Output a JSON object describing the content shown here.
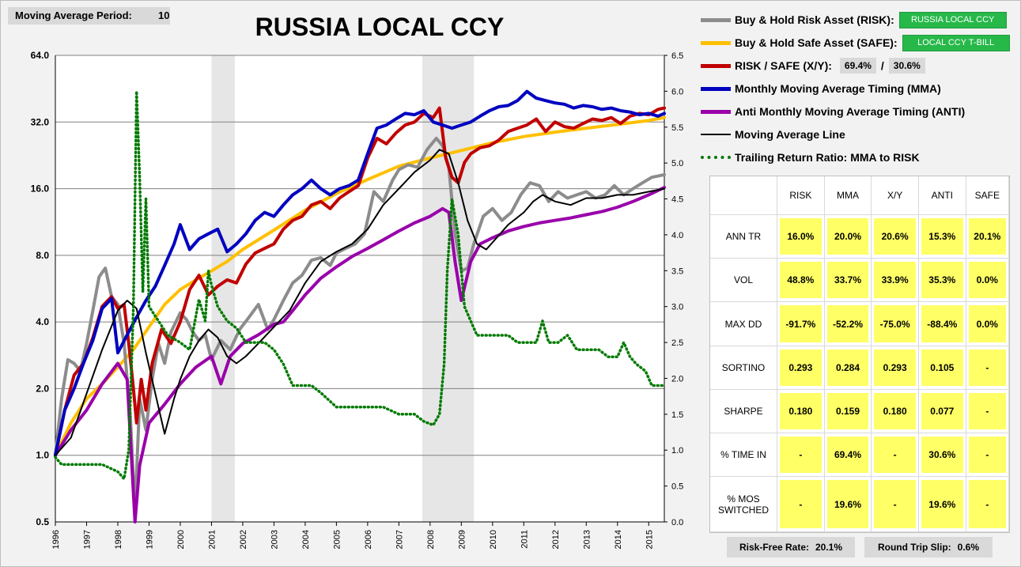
{
  "header": {
    "ma_period_label": "Moving Average Period:",
    "ma_period_value": "10"
  },
  "legend": {
    "risk_label": "Buy & Hold Risk Asset (RISK):",
    "risk_asset": "RUSSIA LOCAL CCY",
    "safe_label": "Buy & Hold Safe Asset (SAFE):",
    "safe_asset": "LOCAL CCY T-BILL",
    "xy_label": "RISK / SAFE (X/Y):",
    "xy_risk_pct": "69.4%",
    "xy_sep": "/",
    "xy_safe_pct": "30.6%",
    "mma_label": "Monthly Moving Average Timing (MMA)",
    "anti_label": "Anti Monthly Moving Average Timing (ANTI)",
    "maline_label": "Moving Average Line",
    "trr_label": "Trailing Return Ratio: MMA to RISK"
  },
  "colors": {
    "risk": "#8c8c8c",
    "safe": "#ffc000",
    "xy": "#c00000",
    "mma": "#0000c0",
    "anti": "#9900aa",
    "maline": "#000000",
    "trr": "#007a00",
    "recession": "#e6e6e6",
    "badge_green": "#27b84a",
    "cell_yellow": "#ffff66"
  },
  "stats": {
    "columns": [
      "RISK",
      "MMA",
      "X/Y",
      "ANTI",
      "SAFE"
    ],
    "rows": [
      {
        "label": "ANN TR",
        "values": [
          "16.0%",
          "20.0%",
          "20.6%",
          "15.3%",
          "20.1%"
        ]
      },
      {
        "label": "VOL",
        "values": [
          "48.8%",
          "33.7%",
          "33.9%",
          "35.3%",
          "0.0%"
        ]
      },
      {
        "label": "MAX DD",
        "values": [
          "-91.7%",
          "-52.2%",
          "-75.0%",
          "-88.4%",
          "0.0%"
        ]
      },
      {
        "label": "SORTINO",
        "values": [
          "0.293",
          "0.284",
          "0.293",
          "0.105",
          "-"
        ]
      },
      {
        "label": "SHARPE",
        "values": [
          "0.180",
          "0.159",
          "0.180",
          "0.077",
          "-"
        ]
      },
      {
        "label": "% TIME IN",
        "values": [
          "-",
          "69.4%",
          "-",
          "30.6%",
          "-"
        ]
      },
      {
        "label": "% MOS SWITCHED",
        "values": [
          "-",
          "19.6%",
          "-",
          "19.6%",
          "-"
        ]
      }
    ]
  },
  "footer": {
    "rf_label": "Risk-Free Rate:",
    "rf_value": "20.1%",
    "slip_label": "Round Trip Slip:",
    "slip_value": "0.6%"
  },
  "chart_data": {
    "type": "line",
    "title": "RUSSIA LOCAL CCY",
    "y_scale": "log2",
    "ylim": [
      0.5,
      64
    ],
    "y_ticks": [
      "64.0",
      "32.0",
      "16.0",
      "8.0",
      "4.0",
      "2.0",
      "1.0",
      "0.5"
    ],
    "y2lim": [
      0.0,
      6.5
    ],
    "y2_ticks": [
      "6.5",
      "6.0",
      "5.5",
      "5.0",
      "4.5",
      "4.0",
      "3.5",
      "3.0",
      "2.5",
      "2.0",
      "1.5",
      "1.0",
      "0.5",
      "0.0"
    ],
    "xlim": [
      1996.0,
      2015.5
    ],
    "x_ticks": [
      "1996",
      "1997",
      "1998",
      "1999",
      "2000",
      "2001",
      "2002",
      "2003",
      "2004",
      "2005",
      "2006",
      "2007",
      "2008",
      "2009",
      "2010",
      "2011",
      "2012",
      "2013",
      "2014",
      "2015"
    ],
    "grid": true,
    "shaded_periods": [
      [
        2001.0,
        2001.75
      ],
      [
        2007.75,
        2009.4
      ]
    ],
    "series": [
      {
        "name": "Buy & Hold Risk Asset (RISK)",
        "axis": "left",
        "x": [
          1996.0,
          1996.2,
          1996.4,
          1996.6,
          1996.8,
          1997.0,
          1997.2,
          1997.4,
          1997.6,
          1997.8,
          1998.0,
          1998.2,
          1998.4,
          1998.55,
          1998.7,
          1998.9,
          1999.1,
          1999.3,
          1999.5,
          1999.7,
          2000.0,
          2000.2,
          2000.4,
          2000.6,
          2000.8,
          2001.0,
          2001.3,
          2001.6,
          2001.9,
          2002.2,
          2002.5,
          2002.8,
          2003.0,
          2003.3,
          2003.6,
          2003.9,
          2004.2,
          2004.5,
          2004.8,
          2005.0,
          2005.3,
          2005.6,
          2005.9,
          2006.2,
          2006.5,
          2006.8,
          2007.0,
          2007.3,
          2007.6,
          2007.9,
          2008.2,
          2008.4,
          2008.6,
          2008.8,
          2009.0,
          2009.2,
          2009.4,
          2009.7,
          2010.0,
          2010.3,
          2010.6,
          2010.9,
          2011.2,
          2011.5,
          2011.8,
          2012.1,
          2012.4,
          2012.7,
          2013.0,
          2013.3,
          2013.6,
          2013.9,
          2014.2,
          2014.5,
          2014.8,
          2015.1,
          2015.5
        ],
        "values": [
          1.0,
          1.8,
          2.7,
          2.6,
          2.4,
          3.2,
          4.5,
          6.4,
          7.0,
          5.2,
          4.8,
          3.2,
          1.5,
          0.55,
          1.8,
          1.3,
          2.2,
          3.2,
          2.6,
          3.6,
          4.4,
          4.1,
          3.6,
          3.3,
          3.5,
          2.7,
          3.3,
          3.0,
          3.7,
          4.2,
          4.8,
          3.7,
          4.1,
          5.0,
          6.0,
          6.5,
          7.6,
          7.8,
          7.2,
          8.2,
          8.6,
          9.0,
          10.0,
          15.5,
          14.0,
          17.5,
          19.5,
          20.5,
          20.0,
          24.0,
          27.0,
          25.0,
          20.0,
          10.0,
          6.8,
          7.0,
          9.0,
          12.0,
          13.0,
          11.5,
          12.5,
          15.0,
          17.0,
          16.5,
          14.0,
          15.5,
          14.5,
          15.0,
          15.5,
          14.5,
          15.0,
          16.5,
          15.0,
          16.0,
          17.0,
          18.0,
          18.5
        ]
      },
      {
        "name": "Buy & Hold Safe Asset (SAFE)",
        "axis": "left",
        "x": [
          1996.0,
          1996.5,
          1997.0,
          1997.5,
          1998.0,
          1998.5,
          1999.0,
          1999.5,
          2000.0,
          2000.5,
          2001.0,
          2001.5,
          2002.0,
          2003.0,
          2004.0,
          2005.0,
          2006.0,
          2007.0,
          2008.0,
          2009.0,
          2010.0,
          2011.0,
          2012.0,
          2013.0,
          2014.0,
          2015.0,
          2015.5
        ],
        "values": [
          1.0,
          1.4,
          1.8,
          2.1,
          2.5,
          3.0,
          3.8,
          4.8,
          5.6,
          6.2,
          6.8,
          7.5,
          8.5,
          10.4,
          12.8,
          15.2,
          17.6,
          20.2,
          22.0,
          23.8,
          25.8,
          27.5,
          28.8,
          30.0,
          31.2,
          32.5,
          33.5
        ]
      },
      {
        "name": "RISK / SAFE (X/Y)",
        "axis": "left",
        "x": [
          1996.0,
          1996.3,
          1996.6,
          1996.9,
          1997.2,
          1997.5,
          1997.8,
          1998.0,
          1998.2,
          1998.35,
          1998.5,
          1998.6,
          1998.75,
          1998.9,
          1999.1,
          1999.4,
          1999.7,
          2000.0,
          2000.3,
          2000.6,
          2000.9,
          2001.2,
          2001.5,
          2001.8,
          2002.1,
          2002.4,
          2002.7,
          2003.0,
          2003.3,
          2003.6,
          2003.9,
          2004.2,
          2004.5,
          2004.8,
          2005.1,
          2005.4,
          2005.7,
          2006.0,
          2006.3,
          2006.6,
          2006.9,
          2007.2,
          2007.5,
          2007.8,
          2008.1,
          2008.3,
          2008.5,
          2008.7,
          2008.9,
          2009.1,
          2009.3,
          2009.6,
          2009.9,
          2010.2,
          2010.5,
          2010.8,
          2011.1,
          2011.4,
          2011.7,
          2012.0,
          2012.3,
          2012.6,
          2012.9,
          2013.2,
          2013.5,
          2013.8,
          2014.1,
          2014.4,
          2014.7,
          2015.0,
          2015.3,
          2015.5
        ],
        "values": [
          1.0,
          1.6,
          2.3,
          2.6,
          3.4,
          4.7,
          5.2,
          4.6,
          4.8,
          3.2,
          2.0,
          1.4,
          2.2,
          1.6,
          2.6,
          3.7,
          3.2,
          4.0,
          5.6,
          6.5,
          5.3,
          5.8,
          6.2,
          6.0,
          7.3,
          8.2,
          8.6,
          9.0,
          10.5,
          11.5,
          12.0,
          13.5,
          14.0,
          13.0,
          14.5,
          15.5,
          16.5,
          22.0,
          27.0,
          25.5,
          28.5,
          31.0,
          32.0,
          35.0,
          33.5,
          37.0,
          22.0,
          18.0,
          17.0,
          21.0,
          23.0,
          24.5,
          25.0,
          26.5,
          29.0,
          30.0,
          31.0,
          33.0,
          29.0,
          32.0,
          30.5,
          30.0,
          31.5,
          33.0,
          32.5,
          33.5,
          31.5,
          34.0,
          35.0,
          34.5,
          36.5,
          37.0
        ]
      },
      {
        "name": "Monthly Moving Average Timing (MMA)",
        "axis": "left",
        "x": [
          1996.0,
          1996.3,
          1996.6,
          1996.9,
          1997.2,
          1997.5,
          1997.8,
          1998.0,
          1998.3,
          1998.6,
          1998.9,
          1999.2,
          1999.5,
          1999.8,
          2000.0,
          2000.3,
          2000.6,
          2000.9,
          2001.2,
          2001.5,
          2001.8,
          2002.1,
          2002.4,
          2002.7,
          2003.0,
          2003.3,
          2003.6,
          2003.9,
          2004.2,
          2004.5,
          2004.8,
          2005.1,
          2005.4,
          2005.7,
          2006.0,
          2006.3,
          2006.6,
          2006.9,
          2007.2,
          2007.5,
          2007.8,
          2008.1,
          2008.4,
          2008.7,
          2009.0,
          2009.3,
          2009.6,
          2009.9,
          2010.2,
          2010.5,
          2010.8,
          2011.1,
          2011.4,
          2011.7,
          2012.0,
          2012.3,
          2012.6,
          2012.9,
          2013.2,
          2013.5,
          2013.8,
          2014.1,
          2014.4,
          2014.7,
          2015.0,
          2015.3,
          2015.5
        ],
        "values": [
          1.0,
          1.6,
          2.0,
          2.6,
          3.3,
          4.6,
          5.1,
          2.9,
          3.5,
          4.2,
          5.0,
          5.8,
          7.2,
          9.0,
          11.0,
          8.5,
          9.5,
          10.0,
          10.5,
          8.3,
          9.0,
          10.0,
          11.5,
          12.5,
          12.0,
          13.5,
          15.0,
          16.0,
          17.5,
          16.0,
          15.0,
          16.0,
          16.5,
          17.5,
          23.0,
          30.0,
          31.0,
          33.0,
          35.0,
          34.5,
          36.0,
          32.0,
          31.0,
          30.0,
          31.0,
          32.0,
          34.0,
          36.0,
          37.5,
          38.0,
          40.0,
          44.0,
          41.0,
          40.0,
          39.0,
          38.5,
          37.0,
          38.0,
          37.5,
          36.5,
          37.0,
          36.0,
          35.5,
          34.5,
          35.0,
          34.0,
          35.0
        ]
      },
      {
        "name": "Anti Monthly Moving Average Timing (ANTI)",
        "axis": "left",
        "x": [
          1996.0,
          1996.5,
          1997.0,
          1997.5,
          1998.0,
          1998.3,
          1998.55,
          1998.7,
          1999.0,
          1999.5,
          2000.0,
          2000.5,
          2001.0,
          2001.3,
          2001.6,
          2002.0,
          2002.5,
          2003.0,
          2003.3,
          2003.6,
          2004.0,
          2004.5,
          2005.0,
          2005.5,
          2006.0,
          2006.5,
          2007.0,
          2007.5,
          2008.0,
          2008.4,
          2008.6,
          2008.8,
          2009.0,
          2009.3,
          2009.6,
          2010.0,
          2010.5,
          2011.0,
          2011.5,
          2012.0,
          2012.5,
          2013.0,
          2013.5,
          2014.0,
          2014.5,
          2015.0,
          2015.5
        ],
        "values": [
          1.0,
          1.3,
          1.6,
          2.1,
          2.6,
          2.2,
          0.5,
          0.9,
          1.4,
          1.7,
          2.1,
          2.5,
          2.8,
          2.1,
          2.8,
          3.2,
          3.5,
          3.9,
          4.0,
          4.5,
          5.3,
          6.3,
          7.1,
          7.9,
          8.6,
          9.4,
          10.3,
          11.2,
          12.0,
          13.0,
          12.5,
          7.5,
          5.0,
          7.5,
          9.0,
          9.6,
          10.3,
          10.8,
          11.2,
          11.5,
          11.8,
          12.2,
          12.6,
          13.2,
          14.0,
          15.0,
          16.2
        ]
      },
      {
        "name": "Moving Average Line",
        "axis": "left",
        "x": [
          1996.0,
          1996.5,
          1997.0,
          1997.5,
          1998.0,
          1998.3,
          1998.6,
          1998.9,
          1999.2,
          1999.5,
          1999.8,
          2000.0,
          2000.3,
          2000.6,
          2000.9,
          2001.2,
          2001.5,
          2001.8,
          2002.1,
          2002.5,
          2003.0,
          2003.5,
          2004.0,
          2004.5,
          2005.0,
          2005.5,
          2006.0,
          2006.5,
          2007.0,
          2007.5,
          2008.0,
          2008.3,
          2008.6,
          2008.9,
          2009.2,
          2009.5,
          2009.8,
          2010.1,
          2010.5,
          2011.0,
          2011.3,
          2011.6,
          2012.0,
          2012.5,
          2013.0,
          2013.5,
          2014.0,
          2014.5,
          2015.0,
          2015.5
        ],
        "values": [
          1.0,
          1.2,
          1.9,
          3.0,
          4.5,
          5.0,
          4.6,
          2.9,
          1.9,
          1.25,
          1.8,
          2.2,
          2.8,
          3.3,
          3.7,
          3.4,
          2.8,
          2.6,
          2.8,
          3.2,
          3.8,
          4.5,
          6.0,
          7.5,
          8.3,
          9.0,
          10.5,
          13.5,
          16.0,
          19.0,
          21.5,
          24.0,
          23.0,
          17.0,
          11.5,
          9.0,
          8.5,
          9.5,
          11.0,
          12.5,
          14.0,
          15.0,
          14.0,
          13.5,
          14.5,
          14.5,
          15.0,
          15.0,
          15.5,
          16.0
        ]
      },
      {
        "name": "Trailing Return Ratio: MMA to RISK",
        "axis": "right",
        "x": [
          1996.0,
          1996.2,
          1996.5,
          1997.0,
          1997.5,
          1998.0,
          1998.2,
          1998.35,
          1998.5,
          1998.6,
          1998.7,
          1998.8,
          1998.9,
          1999.0,
          1999.3,
          1999.6,
          2000.0,
          2000.3,
          2000.6,
          2000.8,
          2000.9,
          2001.0,
          2001.2,
          2001.5,
          2001.8,
          2002.1,
          2002.4,
          2002.7,
          2003.0,
          2003.3,
          2003.6,
          2003.9,
          2004.2,
          2004.5,
          2005.0,
          2005.5,
          2006.0,
          2006.5,
          2007.0,
          2007.5,
          2007.8,
          2008.1,
          2008.3,
          2008.45,
          2008.55,
          2008.7,
          2008.9,
          2009.1,
          2009.3,
          2009.5,
          2009.8,
          2010.2,
          2010.5,
          2010.8,
          2011.1,
          2011.4,
          2011.6,
          2011.8,
          2012.1,
          2012.4,
          2012.7,
          2013.0,
          2013.4,
          2013.7,
          2014.0,
          2014.2,
          2014.4,
          2014.6,
          2014.9,
          2015.1,
          2015.5
        ],
        "values": [
          0.9,
          0.8,
          0.8,
          0.8,
          0.8,
          0.7,
          0.6,
          1.0,
          3.0,
          6.0,
          4.8,
          3.2,
          4.5,
          3.0,
          2.8,
          2.6,
          2.5,
          2.4,
          3.1,
          2.8,
          3.5,
          3.3,
          3.0,
          2.8,
          2.7,
          2.5,
          2.5,
          2.5,
          2.4,
          2.2,
          1.9,
          1.9,
          1.9,
          1.8,
          1.6,
          1.6,
          1.6,
          1.6,
          1.5,
          1.5,
          1.4,
          1.35,
          1.5,
          2.2,
          3.5,
          4.5,
          4.0,
          3.0,
          2.8,
          2.6,
          2.6,
          2.6,
          2.6,
          2.5,
          2.5,
          2.5,
          2.8,
          2.5,
          2.5,
          2.6,
          2.4,
          2.4,
          2.4,
          2.3,
          2.3,
          2.5,
          2.3,
          2.2,
          2.1,
          1.9,
          1.9
        ]
      }
    ]
  }
}
